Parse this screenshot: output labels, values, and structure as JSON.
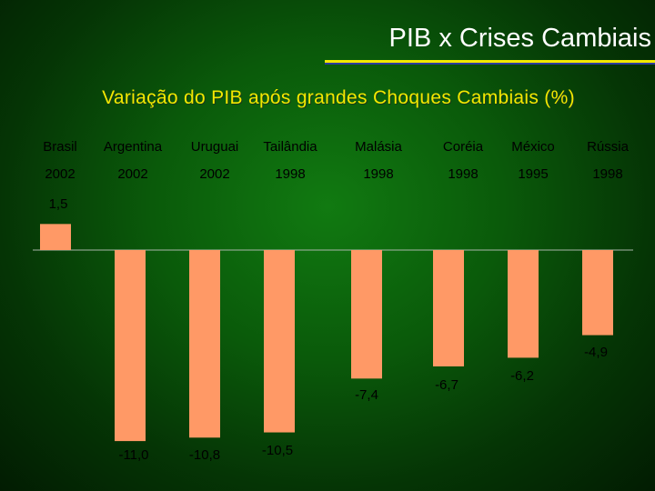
{
  "slide": {
    "title": "PIB x Crises Cambiais",
    "subtitle": "Variação do PIB após grandes Choques Cambiais (%)"
  },
  "colors": {
    "bar": "#ff9966",
    "baseline": "#a9b6a9",
    "title_rule": "#f2e800",
    "subtitle": "#f2e800"
  },
  "chart_data": {
    "type": "bar",
    "categories": [
      "Brasil",
      "Argentina",
      "Uruguai",
      "Tailândia",
      "Malásia",
      "Coréia",
      "México",
      "Rússia"
    ],
    "years": [
      "2002",
      "2002",
      "2002",
      "1998",
      "1998",
      "1998",
      "1995",
      "1998"
    ],
    "values": [
      1.5,
      -11.0,
      -10.8,
      -10.5,
      -7.4,
      -6.7,
      -6.2,
      -4.9
    ],
    "value_labels": [
      "1,5",
      "-11,0",
      "-10,8",
      "-10,5",
      "-7,4",
      "-6,7",
      "-6,2",
      "-4,9"
    ],
    "ylim": [
      -11,
      1.5
    ],
    "grid": false,
    "legend": "none"
  }
}
